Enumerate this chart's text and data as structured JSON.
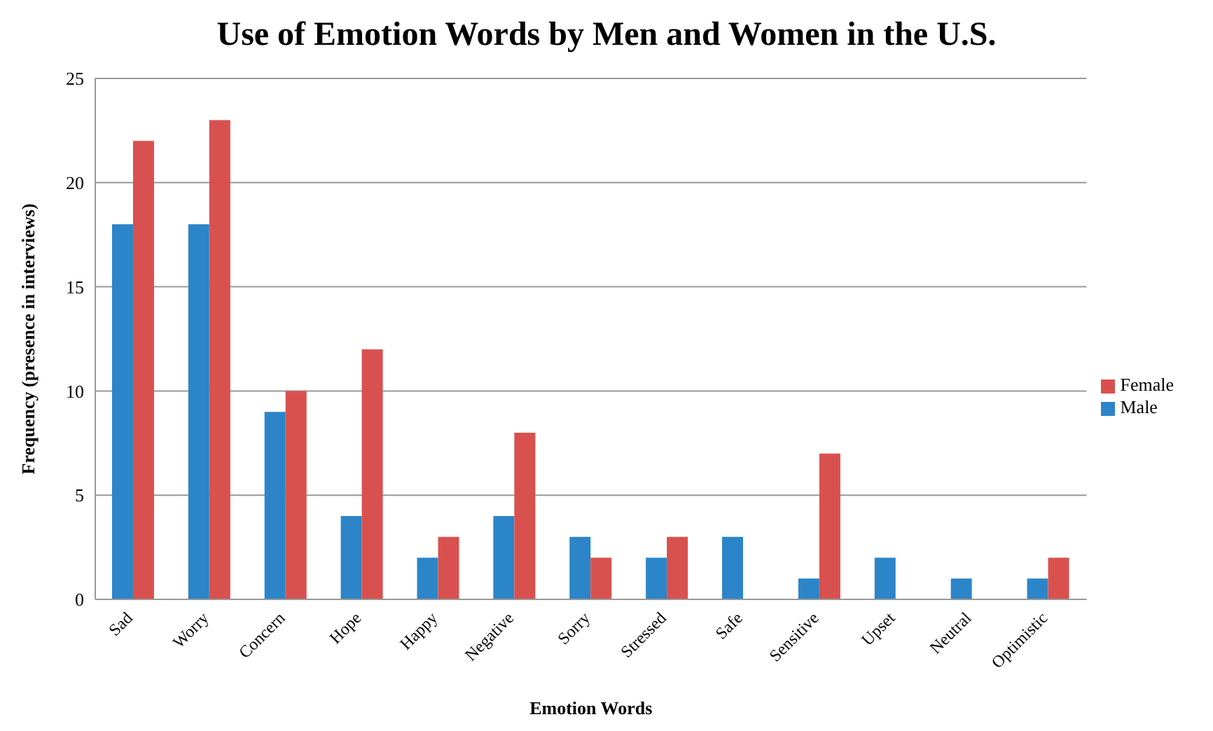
{
  "chart_data": {
    "type": "bar",
    "title": "Use of Emotion Words by Men and Women in the U.S.",
    "xlabel": "Emotion Words",
    "ylabel": "Frequency (presence in interviews)",
    "categories": [
      "Sad",
      "Worry",
      "Concern",
      "Hope",
      "Happy",
      "Negative",
      "Sorry",
      "Stressed",
      "Safe",
      "Sensitive",
      "Upset",
      "Neutral",
      "Optimistic"
    ],
    "series": [
      {
        "name": "Male",
        "color": "#2c85c8",
        "values": [
          18,
          18,
          9,
          4,
          2,
          4,
          3,
          2,
          3,
          1,
          2,
          1,
          1
        ]
      },
      {
        "name": "Female",
        "color": "#d9514e",
        "values": [
          22,
          23,
          10,
          12,
          3,
          8,
          2,
          3,
          0,
          7,
          0,
          0,
          2
        ]
      }
    ],
    "ylim": [
      0,
      25
    ],
    "yticks": [
      0,
      5,
      10,
      15,
      20,
      25
    ],
    "grid": "y",
    "legend": "right"
  }
}
